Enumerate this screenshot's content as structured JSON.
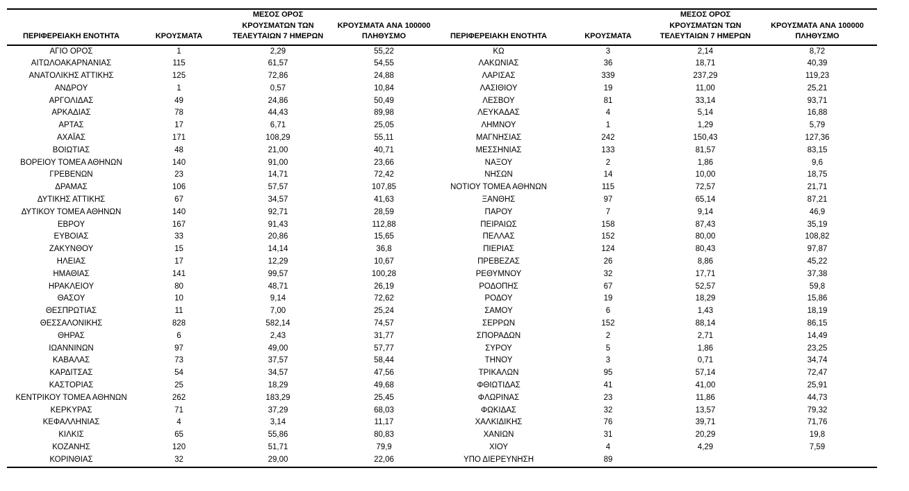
{
  "document": {
    "background": "#ffffff",
    "text_color": "#000000"
  },
  "table": {
    "headers": {
      "region": "ΠΕΡΙΦΕΡΕΙΑΚΗ ΕΝΟΤΗΤΑ",
      "cases": "ΚΡΟΥΣΜΑΤΑ",
      "avg7": "ΜΕΣΟΣ ΟΡΟΣ\nΚΡΟΥΣΜΑΤΩΝ ΤΩΝ\nΤΕΛΕΥΤΑΙΩΝ 7 ΗΜΕΡΩΝ",
      "per100k": "ΚΡΟΥΣΜΑΤΑ ΑΝΑ 100000\nΠΛΗΘΥΣΜΟ"
    },
    "left_rows": [
      [
        "ΑΓΙΟ ΟΡΟΣ",
        "1",
        "2,29",
        "55,22"
      ],
      [
        "ΑΙΤΩΛΟΑΚΑΡΝΑΝΙΑΣ",
        "115",
        "61,57",
        "54,55"
      ],
      [
        "ΑΝΑΤΟΛΙΚΗΣ ΑΤΤΙΚΗΣ",
        "125",
        "72,86",
        "24,88"
      ],
      [
        "ΑΝΔΡΟΥ",
        "1",
        "0,57",
        "10,84"
      ],
      [
        "ΑΡΓΟΛΙΔΑΣ",
        "49",
        "24,86",
        "50,49"
      ],
      [
        "ΑΡΚΑΔΙΑΣ",
        "78",
        "44,43",
        "89,98"
      ],
      [
        "ΑΡΤΑΣ",
        "17",
        "6,71",
        "25,05"
      ],
      [
        "ΑΧΑΪΑΣ",
        "171",
        "108,29",
        "55,11"
      ],
      [
        "ΒΟΙΩΤΙΑΣ",
        "48",
        "21,00",
        "40,71"
      ],
      [
        "ΒΟΡΕΙΟΥ ΤΟΜΕΑ ΑΘΗΝΩΝ",
        "140",
        "91,00",
        "23,66"
      ],
      [
        "ΓΡΕΒΕΝΩΝ",
        "23",
        "14,71",
        "72,42"
      ],
      [
        "ΔΡΑΜΑΣ",
        "106",
        "57,57",
        "107,85"
      ],
      [
        "ΔΥΤΙΚΗΣ ΑΤΤΙΚΗΣ",
        "67",
        "34,57",
        "41,63"
      ],
      [
        "ΔΥΤΙΚΟΥ ΤΟΜΕΑ ΑΘΗΝΩΝ",
        "140",
        "92,71",
        "28,59"
      ],
      [
        "ΕΒΡΟΥ",
        "167",
        "91,43",
        "112,88"
      ],
      [
        "ΕΥΒΟΙΑΣ",
        "33",
        "20,86",
        "15,65"
      ],
      [
        "ΖΑΚΥΝΘΟΥ",
        "15",
        "14,14",
        "36,8"
      ],
      [
        "ΗΛΕΙΑΣ",
        "17",
        "12,29",
        "10,67"
      ],
      [
        "ΗΜΑΘΙΑΣ",
        "141",
        "99,57",
        "100,28"
      ],
      [
        "ΗΡΑΚΛΕΙΟΥ",
        "80",
        "48,71",
        "26,19"
      ],
      [
        "ΘΑΣΟΥ",
        "10",
        "9,14",
        "72,62"
      ],
      [
        "ΘΕΣΠΡΩΤΙΑΣ",
        "11",
        "7,00",
        "25,24"
      ],
      [
        "ΘΕΣΣΑΛΟΝΙΚΗΣ",
        "828",
        "582,14",
        "74,57"
      ],
      [
        "ΘΗΡΑΣ",
        "6",
        "2,43",
        "31,77"
      ],
      [
        "ΙΩΑΝΝΙΝΩΝ",
        "97",
        "49,00",
        "57,77"
      ],
      [
        "ΚΑΒΑΛΑΣ",
        "73",
        "37,57",
        "58,44"
      ],
      [
        "ΚΑΡΔΙΤΣΑΣ",
        "54",
        "34,57",
        "47,56"
      ],
      [
        "ΚΑΣΤΟΡΙΑΣ",
        "25",
        "18,29",
        "49,68"
      ],
      [
        "ΚΕΝΤΡΙΚΟΥ ΤΟΜΕΑ ΑΘΗΝΩΝ",
        "262",
        "183,29",
        "25,45"
      ],
      [
        "ΚΕΡΚΥΡΑΣ",
        "71",
        "37,29",
        "68,03"
      ],
      [
        "ΚΕΦΑΛΛΗΝΙΑΣ",
        "4",
        "3,14",
        "11,17"
      ],
      [
        "ΚΙΛΚΙΣ",
        "65",
        "55,86",
        "80,83"
      ],
      [
        "ΚΟΖΑΝΗΣ",
        "120",
        "51,71",
        "79,9"
      ],
      [
        "ΚΟΡΙΝΘΙΑΣ",
        "32",
        "29,00",
        "22,06"
      ]
    ],
    "right_rows": [
      [
        "ΚΩ",
        "3",
        "2,14",
        "8,72"
      ],
      [
        "ΛΑΚΩΝΙΑΣ",
        "36",
        "18,71",
        "40,39"
      ],
      [
        "ΛΑΡΙΣΑΣ",
        "339",
        "237,29",
        "119,23"
      ],
      [
        "ΛΑΣΙΘΙΟΥ",
        "19",
        "11,00",
        "25,21"
      ],
      [
        "ΛΕΣΒΟΥ",
        "81",
        "33,14",
        "93,71"
      ],
      [
        "ΛΕΥΚΑΔΑΣ",
        "4",
        "5,14",
        "16,88"
      ],
      [
        "ΛΗΜΝΟΥ",
        "1",
        "1,29",
        "5,79"
      ],
      [
        "ΜΑΓΝΗΣΙΑΣ",
        "242",
        "150,43",
        "127,36"
      ],
      [
        "ΜΕΣΣΗΝΙΑΣ",
        "133",
        "81,57",
        "83,15"
      ],
      [
        "ΝΑΞΟΥ",
        "2",
        "1,86",
        "9,6"
      ],
      [
        "ΝΗΣΩΝ",
        "14",
        "10,00",
        "18,75"
      ],
      [
        "ΝΟΤΙΟΥ ΤΟΜΕΑ ΑΘΗΝΩΝ",
        "115",
        "72,57",
        "21,71"
      ],
      [
        "ΞΑΝΘΗΣ",
        "97",
        "65,14",
        "87,21"
      ],
      [
        "ΠΑΡΟΥ",
        "7",
        "9,14",
        "46,9"
      ],
      [
        "ΠΕΙΡΑΙΩΣ",
        "158",
        "87,43",
        "35,19"
      ],
      [
        "ΠΕΛΛΑΣ",
        "152",
        "80,00",
        "108,82"
      ],
      [
        "ΠΙΕΡΙΑΣ",
        "124",
        "80,43",
        "97,87"
      ],
      [
        "ΠΡΕΒΕΖΑΣ",
        "26",
        "8,86",
        "45,22"
      ],
      [
        "ΡΕΘΥΜΝΟΥ",
        "32",
        "17,71",
        "37,38"
      ],
      [
        "ΡΟΔΟΠΗΣ",
        "67",
        "52,57",
        "59,8"
      ],
      [
        "ΡΟΔΟΥ",
        "19",
        "18,29",
        "15,86"
      ],
      [
        "ΣΑΜΟΥ",
        "6",
        "1,43",
        "18,19"
      ],
      [
        "ΣΕΡΡΩΝ",
        "152",
        "88,14",
        "86,15"
      ],
      [
        "ΣΠΟΡΑΔΩΝ",
        "2",
        "2,71",
        "14,49"
      ],
      [
        "ΣΥΡΟΥ",
        "5",
        "1,86",
        "23,25"
      ],
      [
        "ΤΗΝΟΥ",
        "3",
        "0,71",
        "34,74"
      ],
      [
        "ΤΡΙΚΑΛΩΝ",
        "95",
        "57,14",
        "72,47"
      ],
      [
        "ΦΘΙΩΤΙΔΑΣ",
        "41",
        "41,00",
        "25,91"
      ],
      [
        "ΦΛΩΡΙΝΑΣ",
        "23",
        "11,86",
        "44,73"
      ],
      [
        "ΦΩΚΙΔΑΣ",
        "32",
        "13,57",
        "79,32"
      ],
      [
        "ΧΑΛΚΙΔΙΚΗΣ",
        "76",
        "39,71",
        "71,76"
      ],
      [
        "ΧΑΝΙΩΝ",
        "31",
        "20,29",
        "19,8"
      ],
      [
        "ΧΙΟΥ",
        "4",
        "4,29",
        "7,59"
      ],
      [
        "ΥΠΟ ΔΙΕΡΕΥΝΗΣΗ",
        "89",
        "",
        ""
      ]
    ]
  }
}
